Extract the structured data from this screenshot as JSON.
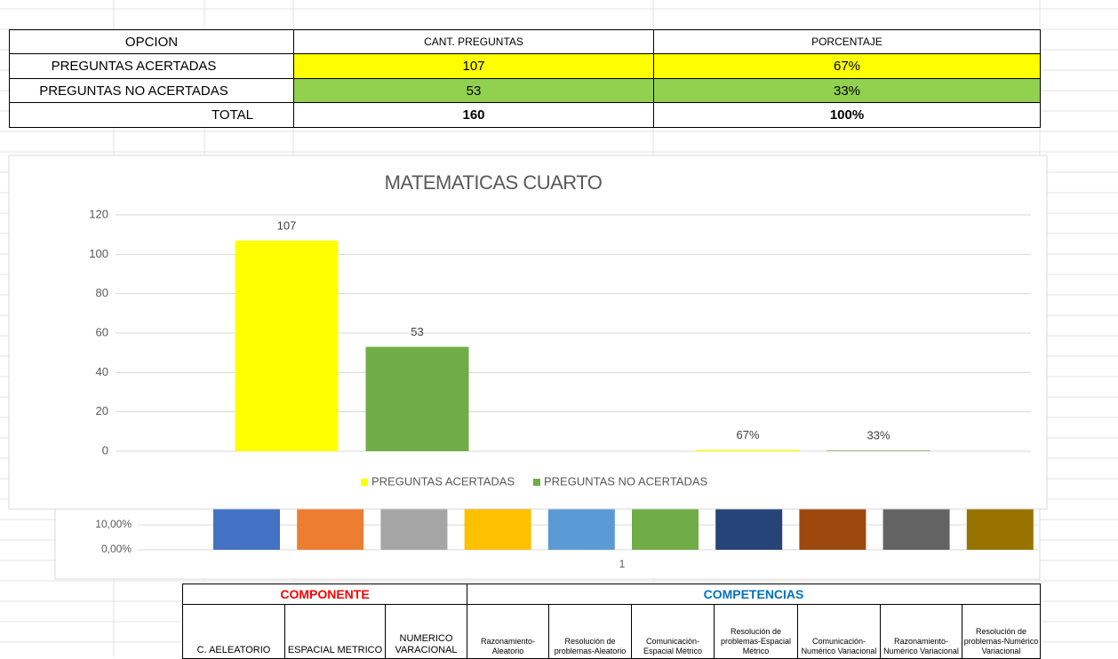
{
  "top_table": {
    "header": [
      "OPCION",
      "CANT. PREGUNTAS",
      "PORCENTAJE"
    ],
    "rows": [
      [
        "PREGUNTAS ACERTADAS",
        "107",
        "67%"
      ],
      [
        "PREGUNTAS NO ACERTADAS",
        "53",
        "33%"
      ],
      [
        "TOTAL",
        "160",
        "100%"
      ]
    ]
  },
  "chart_data": [
    {
      "type": "bar",
      "title": "MATEMATICAS CUARTO",
      "categories": [
        null,
        null
      ],
      "series": [
        {
          "name": "PREGUNTAS ACERTADAS",
          "color": "#ffff00",
          "values": [
            107,
            0.67
          ],
          "value_labels": [
            "107",
            "67%"
          ]
        },
        {
          "name": "PREGUNTAS NO ACERTADAS",
          "color": "#70ad47",
          "values": [
            53,
            0.33
          ],
          "value_labels": [
            "53",
            "33%"
          ]
        }
      ],
      "ylim": [
        0,
        120
      ],
      "yticks": [
        0,
        20,
        40,
        60,
        80,
        100,
        120
      ],
      "grid": true,
      "legend": "bottom"
    },
    {
      "type": "bar",
      "categories": [
        "1"
      ],
      "series": [
        {
          "color": "#4472c4",
          "values": [
            0.2
          ]
        },
        {
          "color": "#ed7d31",
          "values": [
            0.2
          ]
        },
        {
          "color": "#a5a5a5",
          "values": [
            0.2
          ]
        },
        {
          "color": "#ffc000",
          "values": [
            0.2
          ]
        },
        {
          "color": "#5b9bd5",
          "values": [
            0.2
          ]
        },
        {
          "color": "#70ad47",
          "values": [
            0.2
          ]
        },
        {
          "color": "#264478",
          "values": [
            0.2
          ]
        },
        {
          "color": "#9e480e",
          "values": [
            0.2
          ]
        },
        {
          "color": "#636363",
          "values": [
            0.2
          ]
        },
        {
          "color": "#997300",
          "values": [
            0.2
          ]
        }
      ],
      "ylim": [
        0,
        0.2
      ],
      "yticks": [
        {
          "value": 0,
          "label": "0,00%"
        },
        {
          "value": 0.1,
          "label": "10,00%"
        }
      ],
      "grid": true
    }
  ],
  "bottom_table": {
    "groups": [
      "COMPONENTE",
      "COMPETENCIAS"
    ],
    "columns": [
      "C. AELEATORIO",
      "ESPACIAL METRICO",
      "NUMERICO VARACIONAL",
      "Razonamiento-Aleatorio",
      "Resolución de problemas-Aleatorio",
      "Comunicación-Espacial Métrico",
      "Resolución de problemas-Espacial Métrico",
      "Comunicación-Numérico Variacional",
      "Razonamiento-Numérico Variacional",
      "Resolución de problemas-Numérico Variacional"
    ]
  }
}
